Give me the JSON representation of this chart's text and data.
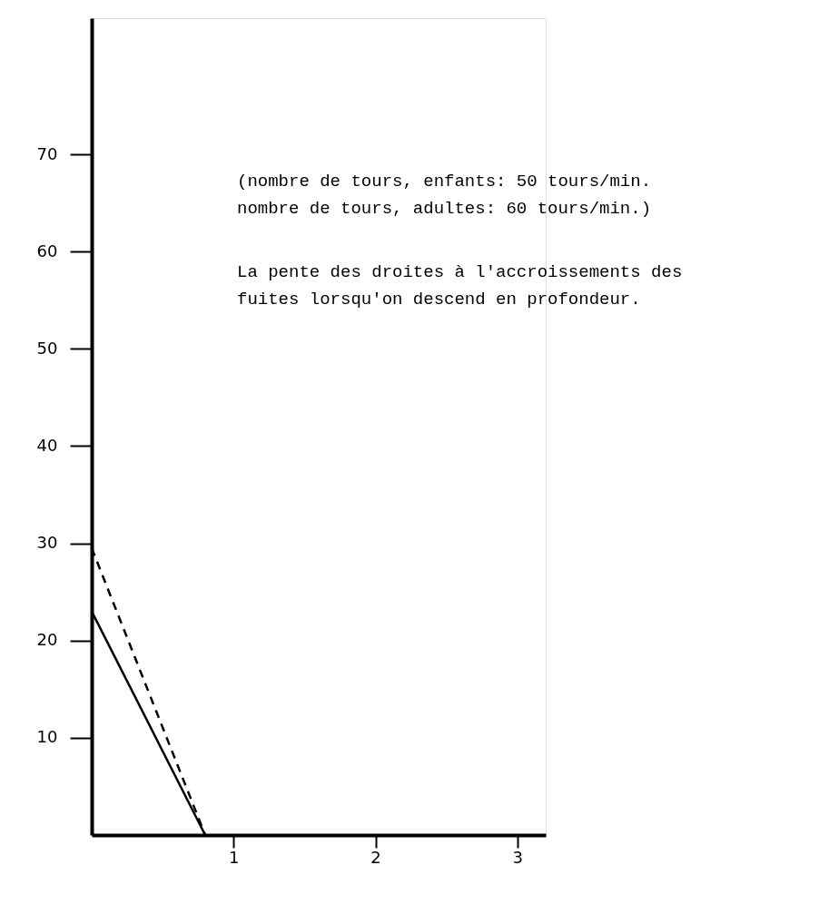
{
  "chart_data": {
    "type": "line",
    "x": [
      0,
      0.8
    ],
    "series": [
      {
        "color": "#000000",
        "line_style": "solid",
        "values": [
          23,
          0
        ]
      },
      {
        "color": "#000000",
        "line_style": "dashed",
        "values": [
          29.5,
          0
        ]
      }
    ],
    "xlim": [
      0,
      3.2
    ],
    "ylim": [
      0,
      84
    ],
    "xticks": [
      1,
      2,
      3
    ],
    "yticks": [
      10,
      20,
      30,
      40,
      50,
      60,
      70
    ],
    "annotations": [
      "(nombre de tours, enfants: 50 tours/min.\n nombre de tours, adultes: 60 tours/min.)",
      "La pente des droites à l'accroissements des\nfuites lorsqu'on descend en profondeur."
    ]
  }
}
